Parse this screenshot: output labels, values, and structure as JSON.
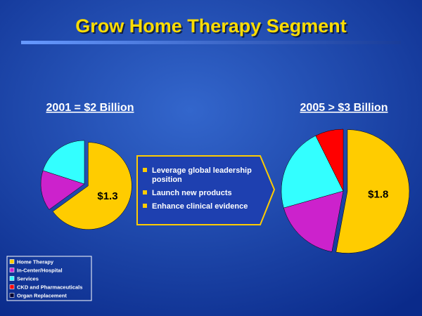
{
  "title": "Grow Home Therapy Segment",
  "callout": [
    "Leverage global leadership position",
    "Launch new products",
    "Enhance clinical evidence"
  ],
  "legend": [
    {
      "name": "Home Therapy",
      "color": "#ffcc00"
    },
    {
      "name": "In-Center/Hospital",
      "color": "#cc22cc"
    },
    {
      "name": "Services",
      "color": "#33ffff"
    },
    {
      "name": "CKD and Pharmaceuticals",
      "color": "#ff0000"
    },
    {
      "name": "Organ Replacement",
      "color": "#000033"
    }
  ],
  "chart_data": [
    {
      "type": "pie",
      "title": "2001 = $2 Billion",
      "values": [
        1.3,
        0.3,
        0.4
      ],
      "value_labels": [
        "$1.3",
        null,
        null
      ],
      "colors": [
        "#ffcc00",
        "#cc22cc",
        "#33ffff"
      ]
    },
    {
      "type": "pie",
      "title": "2005 > $3 Billion",
      "values": [
        1.8,
        0.6,
        0.75,
        0.25
      ],
      "value_labels": [
        "$1.8",
        null,
        null,
        null
      ],
      "colors": [
        "#ffcc00",
        "#cc22cc",
        "#33ffff",
        "#ff0000"
      ]
    }
  ]
}
